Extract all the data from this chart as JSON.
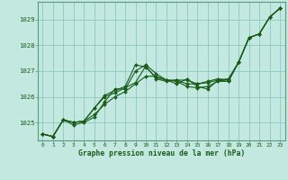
{
  "xlabel": "Graphe pression niveau de la mer (hPa)",
  "background_color": "#c2e8e0",
  "plot_bg_color": "#c2e8e0",
  "line_color": "#1a5c1a",
  "grid_color": "#8cc8c0",
  "text_color": "#1a5c1a",
  "border_color": "#5a9a80",
  "xlim": [
    -0.5,
    23.5
  ],
  "ylim": [
    1024.3,
    1029.7
  ],
  "yticks": [
    1025,
    1026,
    1027,
    1028,
    1029
  ],
  "xticks": [
    0,
    1,
    2,
    3,
    4,
    5,
    6,
    7,
    8,
    9,
    10,
    11,
    12,
    13,
    14,
    15,
    16,
    17,
    18,
    19,
    20,
    21,
    22,
    23
  ],
  "series": [
    [
      1024.55,
      1024.45,
      1025.1,
      1024.9,
      1025.0,
      1025.2,
      1025.8,
      1026.3,
      1026.3,
      1027.0,
      1027.25,
      1026.9,
      1026.65,
      1026.65,
      1026.65,
      1026.5,
      1026.6,
      1026.7,
      1026.65,
      1027.35,
      1028.3,
      1028.45,
      1029.1,
      1029.45
    ],
    [
      1024.55,
      1024.45,
      1025.1,
      1025.0,
      1025.05,
      1025.55,
      1026.0,
      1026.15,
      1026.35,
      1026.55,
      1027.2,
      1026.7,
      1026.6,
      1026.65,
      1026.5,
      1026.5,
      1026.55,
      1026.65,
      1026.6,
      1027.35,
      1028.3,
      1028.45,
      1029.1,
      1029.45
    ],
    [
      1024.55,
      1024.45,
      1025.1,
      1025.0,
      1025.05,
      1025.3,
      1025.7,
      1026.0,
      1026.2,
      1026.5,
      1026.8,
      1026.8,
      1026.65,
      1026.6,
      1026.4,
      1026.35,
      1026.4,
      1026.6,
      1026.6,
      1027.35,
      1028.3,
      1028.45,
      1029.1,
      1029.45
    ],
    [
      1024.55,
      1024.45,
      1025.1,
      1025.0,
      1025.05,
      1025.55,
      1026.05,
      1026.25,
      1026.4,
      1027.25,
      1027.15,
      1026.75,
      1026.65,
      1026.5,
      1026.7,
      1026.4,
      1026.3,
      1026.65,
      1026.7,
      1027.35,
      1028.3,
      1028.45,
      1029.1,
      1029.45
    ]
  ]
}
